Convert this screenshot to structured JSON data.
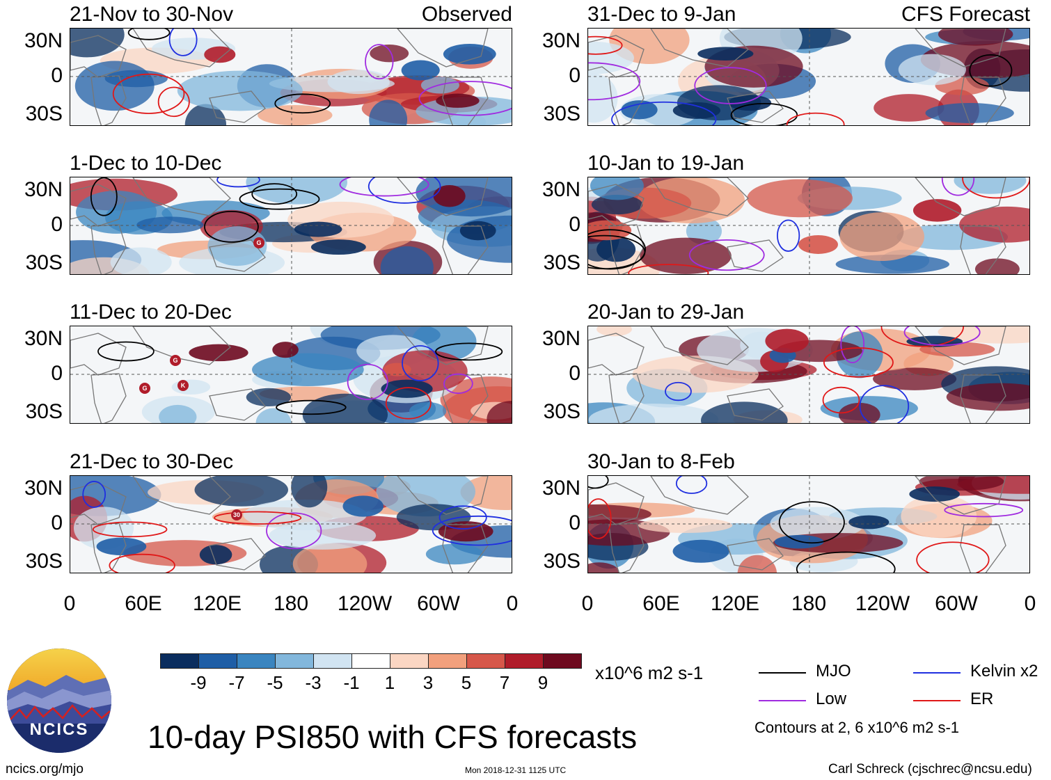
{
  "panels": [
    {
      "id": "p1",
      "title": "21-Nov to 30-Nov",
      "label": "Observed",
      "column": "left",
      "row": 0,
      "seed": 11
    },
    {
      "id": "p2",
      "title": "1-Dec to 10-Dec",
      "label": "",
      "column": "left",
      "row": 1,
      "seed": 23
    },
    {
      "id": "p3",
      "title": "11-Dec to 20-Dec",
      "label": "",
      "column": "left",
      "row": 2,
      "seed": 37
    },
    {
      "id": "p4",
      "title": "21-Dec to 30-Dec",
      "label": "",
      "column": "left",
      "row": 3,
      "seed": 41
    },
    {
      "id": "p5",
      "title": "31-Dec to 9-Jan",
      "label": "CFS Forecast",
      "column": "right",
      "row": 0,
      "seed": 53
    },
    {
      "id": "p6",
      "title": "10-Jan to 19-Jan",
      "label": "",
      "column": "right",
      "row": 1,
      "seed": 67
    },
    {
      "id": "p7",
      "title": "20-Jan to 29-Jan",
      "label": "",
      "column": "right",
      "row": 2,
      "seed": 71
    },
    {
      "id": "p8",
      "title": "30-Jan to 8-Feb",
      "label": "",
      "column": "right",
      "row": 3,
      "seed": 89
    }
  ],
  "axes": {
    "y_labels": [
      "30N",
      "0",
      "30S"
    ],
    "x_labels": [
      "0",
      "60E",
      "120E",
      "180",
      "120W",
      "60W",
      "0"
    ]
  },
  "colorbar": {
    "ticks": [
      "-9",
      "-7",
      "-5",
      "-3",
      "-1",
      "1",
      "3",
      "5",
      "7",
      "9"
    ],
    "units": "x10^6 m2 s-1",
    "colors": [
      "#0a2d5e",
      "#1f5ea6",
      "#3a85c0",
      "#82b7dc",
      "#d1e4f2",
      "#ffffff",
      "#fbd6c3",
      "#f2a07d",
      "#d6574a",
      "#b01c2a",
      "#6e0a1f"
    ]
  },
  "legend": {
    "items": [
      {
        "label": "MJO",
        "color": "#000000"
      },
      {
        "label": "Kelvin x2",
        "color": "#1f2fe0"
      },
      {
        "label": "Low",
        "color": "#a02be0"
      },
      {
        "label": "ER",
        "color": "#e01818"
      }
    ],
    "note": "Contours at 2, 6 x10^6 m2 s-1"
  },
  "footer": {
    "main_title": "10-day PSI850 with CFS forecasts",
    "url": "ncics.org/mjo",
    "timestamp": "Mon 2018-12-31 1125 UTC",
    "author": "Carl Schreck (cjschrec@ncsu.edu)",
    "logo_text": "NCICS"
  },
  "storm_markers": [
    {
      "panel": "p2",
      "symbol": "G"
    },
    {
      "panel": "p3",
      "symbol": "G"
    },
    {
      "panel": "p3",
      "symbol": "G"
    },
    {
      "panel": "p3",
      "symbol": "K"
    },
    {
      "panel": "p4",
      "symbol": "30"
    }
  ]
}
